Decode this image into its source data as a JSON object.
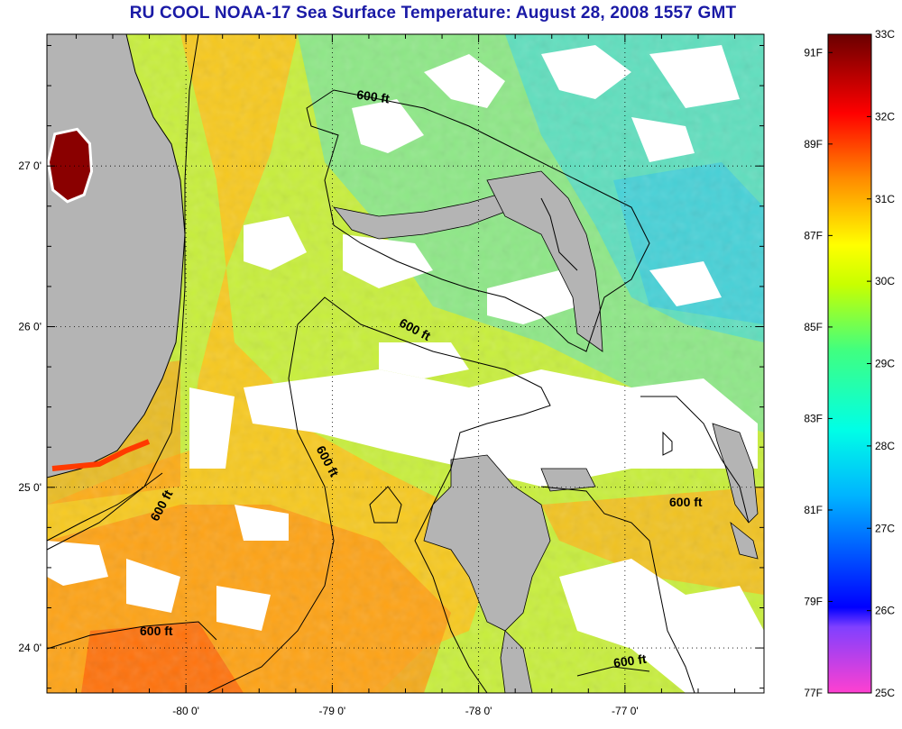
{
  "title": "RU COOL  NOAA-17  Sea Surface Temperature:  August 28, 2008 1557 GMT",
  "map": {
    "lon_range": [
      -80.95,
      -76.05
    ],
    "lat_range": [
      23.72,
      27.82
    ],
    "lon_ticks": [
      {
        "value": -80,
        "label": "-80 0'"
      },
      {
        "value": -79,
        "label": "-79 0'"
      },
      {
        "value": -78,
        "label": "-78 0'"
      },
      {
        "value": -77,
        "label": "-77 0'"
      }
    ],
    "lat_ticks": [
      {
        "value": 24,
        "label": "24 0'"
      },
      {
        "value": 25,
        "label": "25 0'"
      },
      {
        "value": 26,
        "label": "26 0'"
      },
      {
        "value": 27,
        "label": "27 0'"
      }
    ],
    "grid": "dotted",
    "contour_label": "600 ft",
    "colors": {
      "land": "#b4b4b4",
      "cloud": "#ffffff",
      "coast": "#000000"
    }
  },
  "colorbar": {
    "celsius_labels": [
      "33C",
      "32C",
      "31C",
      "30C",
      "29C",
      "28C",
      "27C",
      "26C",
      "25C"
    ],
    "fahrenheit_labels": [
      "91F",
      "89F",
      "87F",
      "85F",
      "83F",
      "81F",
      "79F",
      "77F"
    ],
    "range_c": [
      25,
      33
    ],
    "stops": [
      "#ff40d0",
      "#0000ff",
      "#00b4ff",
      "#00ffe6",
      "#40ff80",
      "#c8ff00",
      "#ffff00",
      "#ff8c00",
      "#ff0000",
      "#6a0000"
    ]
  }
}
